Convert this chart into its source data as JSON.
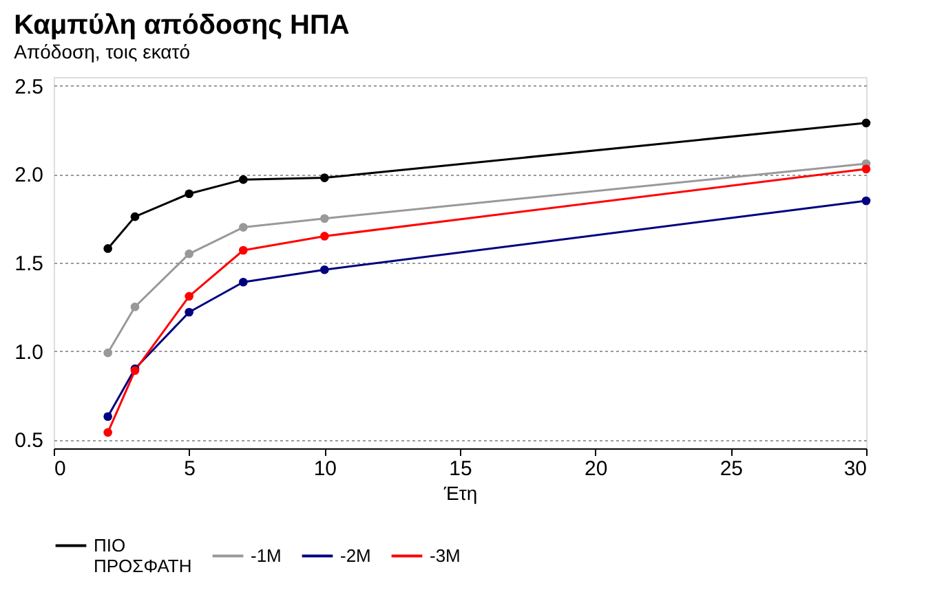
{
  "chart_data": {
    "type": "line",
    "title": "Καμπύλη απόδοσης ΗΠΑ",
    "subtitle": "Απόδοση, τοις εκατό",
    "xlabel": "Έτη",
    "x": [
      2,
      3,
      5,
      7,
      10,
      30
    ],
    "series": [
      {
        "name": "ΠΙΟ ΠΡΟΣΦΑΤΗ",
        "color": "#000000",
        "values": [
          1.58,
          1.76,
          1.89,
          1.97,
          1.98,
          2.29
        ]
      },
      {
        "name": "-1M",
        "color": "#999999",
        "values": [
          0.99,
          1.25,
          1.55,
          1.7,
          1.75,
          2.06
        ]
      },
      {
        "name": "-2M",
        "color": "#000080",
        "values": [
          0.63,
          0.9,
          1.22,
          1.39,
          1.46,
          1.85
        ]
      },
      {
        "name": "-3M",
        "color": "#ff0000",
        "values": [
          0.54,
          0.89,
          1.31,
          1.57,
          1.65,
          2.03
        ]
      }
    ],
    "xlim": [
      0,
      30
    ],
    "xticks": [
      0,
      5,
      10,
      15,
      20,
      25,
      30
    ],
    "ylim": [
      0.45,
      2.55
    ],
    "yticks": [
      0.5,
      {
        "value": 1,
        "label": "1.0"
      },
      1.5,
      {
        "value": 2,
        "label": "2.0"
      },
      2.5
    ],
    "grid": "y",
    "legend": "bottom",
    "marker": "circle",
    "line_style": "solid"
  }
}
